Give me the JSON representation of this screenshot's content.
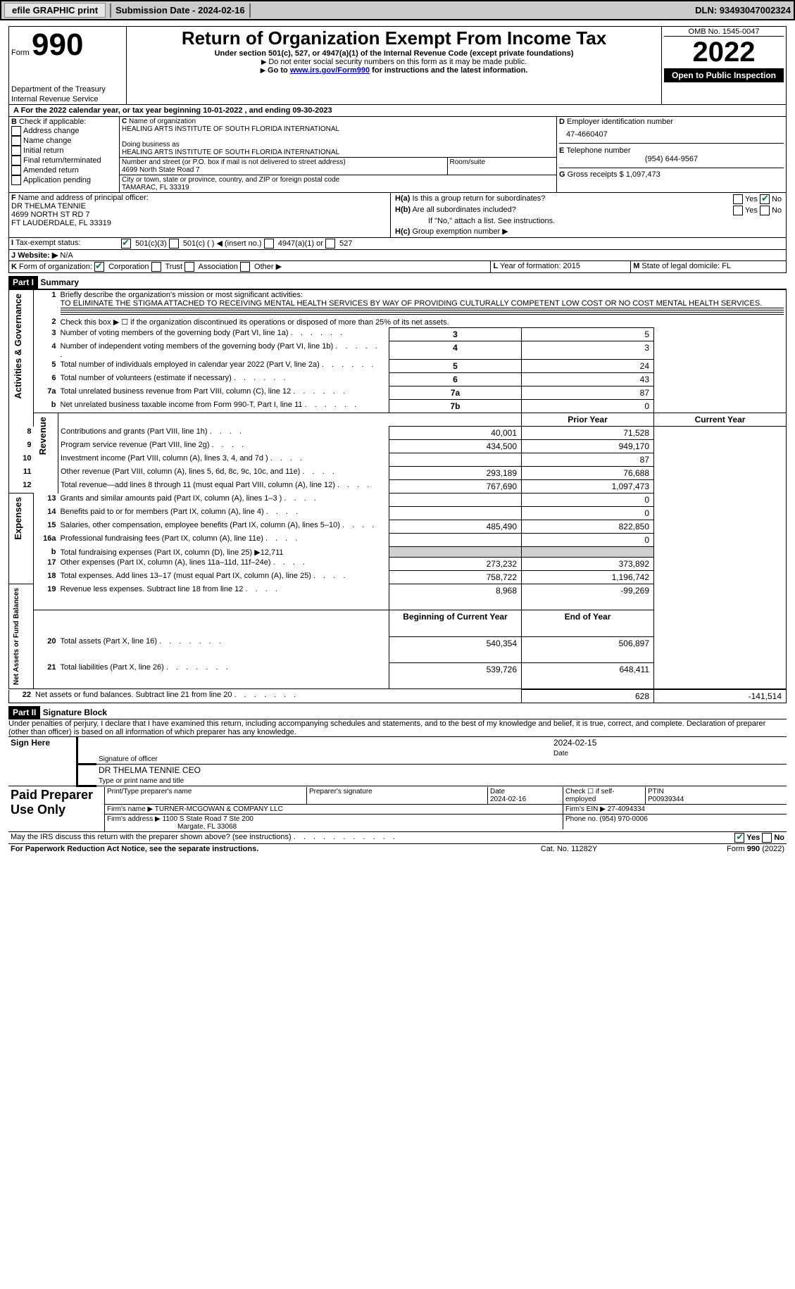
{
  "topbar": {
    "btn1": "efile GRAPHIC print",
    "subdate_label": "Submission Date - 2024-02-16",
    "dln": "DLN: 93493047002324"
  },
  "header": {
    "form_word": "Form",
    "form_num": "990",
    "dept": "Department of the Treasury",
    "irs": "Internal Revenue Service",
    "title": "Return of Organization Exempt From Income Tax",
    "sub1": "Under section 501(c), 527, or 4947(a)(1) of the Internal Revenue Code (except private foundations)",
    "sub2": "Do not enter social security numbers on this form as it may be made public.",
    "sub3_pre": "Go to ",
    "sub3_link": "www.irs.gov/Form990",
    "sub3_post": " for instructions and the latest information.",
    "omb": "OMB No. 1545-0047",
    "year": "2022",
    "open": "Open to Public Inspection"
  },
  "A": {
    "line": "For the 2022 calendar year, or tax year beginning 10-01-2022   , and ending 09-30-2023"
  },
  "B": {
    "label": "Check if applicable:",
    "opts": [
      "Address change",
      "Name change",
      "Initial return",
      "Final return/terminated",
      "Amended return",
      "Application pending"
    ]
  },
  "C": {
    "name_lbl": "Name of organization",
    "name": "HEALING ARTS INSTITUTE OF SOUTH FLORIDA INTERNATIONAL",
    "dba_lbl": "Doing business as",
    "dba": "HEALING ARTS INSTITUTE OF SOUTH FLORIDA INTERNATIONAL",
    "street_lbl": "Number and street (or P.O. box if mail is not delivered to street address)",
    "street": "4699 North State Road 7",
    "room_lbl": "Room/suite",
    "city_lbl": "City or town, state or province, country, and ZIP or foreign postal code",
    "city": "TAMARAC, FL  33319"
  },
  "D": {
    "lbl": "Employer identification number",
    "val": "47-4660407"
  },
  "E": {
    "lbl": "Telephone number",
    "val": "(954) 644-9567"
  },
  "G": {
    "lbl": "Gross receipts $",
    "val": "1,097,473"
  },
  "F": {
    "lbl": "Name and address of principal officer:",
    "l1": "DR THELMA TENNIE",
    "l2": "4699 NORTH ST RD 7",
    "l3": "FT LAUDERDALE, FL  33319"
  },
  "H": {
    "a": "Is this a group return for subordinates?",
    "b": "Are all subordinates included?",
    "b2": "If \"No,\" attach a list. See instructions.",
    "c": "Group exemption number ▶"
  },
  "I": {
    "lbl": "Tax-exempt status:",
    "o1": "501(c)(3)",
    "o2": "501(c) (  ) ◀ (insert no.)",
    "o3": "4947(a)(1) or",
    "o4": "527"
  },
  "J": {
    "lbl": "Website: ▶",
    "val": "N/A"
  },
  "K": {
    "lbl": "Form of organization:",
    "opts": [
      "Corporation",
      "Trust",
      "Association",
      "Other ▶"
    ]
  },
  "L": {
    "lbl": "Year of formation:",
    "val": "2015"
  },
  "M": {
    "lbl": "State of legal domicile:",
    "val": "FL"
  },
  "part1": {
    "title": "Part I",
    "head": "Summary",
    "q1": "Briefly describe the organization's mission or most significant activities:",
    "q1v": "TO ELIMINATE THE STIGMA ATTACHED TO RECEIVING MENTAL HEALTH SERVICES BY WAY OF PROVIDING CULTURALLY COMPETENT LOW COST OR NO COST MENTAL HEALTH SERVICES.",
    "q2": "Check this box ▶ ☐ if the organization discontinued its operations or disposed of more than 25% of its net assets.",
    "rows": [
      {
        "n": "3",
        "t": "Number of voting members of the governing body (Part VI, line 1a)",
        "box": "3",
        "v": "5"
      },
      {
        "n": "4",
        "t": "Number of independent voting members of the governing body (Part VI, line 1b)",
        "box": "4",
        "v": "3"
      },
      {
        "n": "5",
        "t": "Total number of individuals employed in calendar year 2022 (Part V, line 2a)",
        "box": "5",
        "v": "24"
      },
      {
        "n": "6",
        "t": "Total number of volunteers (estimate if necessary)",
        "box": "6",
        "v": "43"
      },
      {
        "n": "7a",
        "t": "Total unrelated business revenue from Part VIII, column (C), line 12",
        "box": "7a",
        "v": "87"
      },
      {
        "n": "b",
        "t": "Net unrelated business taxable income from Form 990-T, Part I, line 11",
        "box": "7b",
        "v": "0"
      }
    ],
    "py": "Prior Year",
    "cy": "Current Year",
    "rev": [
      {
        "n": "8",
        "t": "Contributions and grants (Part VIII, line 1h)",
        "p": "40,001",
        "c": "71,528"
      },
      {
        "n": "9",
        "t": "Program service revenue (Part VIII, line 2g)",
        "p": "434,500",
        "c": "949,170"
      },
      {
        "n": "10",
        "t": "Investment income (Part VIII, column (A), lines 3, 4, and 7d )",
        "p": "",
        "c": "87"
      },
      {
        "n": "11",
        "t": "Other revenue (Part VIII, column (A), lines 5, 6d, 8c, 9c, 10c, and 11e)",
        "p": "293,189",
        "c": "76,688"
      },
      {
        "n": "12",
        "t": "Total revenue—add lines 8 through 11 (must equal Part VIII, column (A), line 12)",
        "p": "767,690",
        "c": "1,097,473"
      }
    ],
    "exp": [
      {
        "n": "13",
        "t": "Grants and similar amounts paid (Part IX, column (A), lines 1–3 )",
        "p": "",
        "c": "0"
      },
      {
        "n": "14",
        "t": "Benefits paid to or for members (Part IX, column (A), line 4)",
        "p": "",
        "c": "0"
      },
      {
        "n": "15",
        "t": "Salaries, other compensation, employee benefits (Part IX, column (A), lines 5–10)",
        "p": "485,490",
        "c": "822,850"
      },
      {
        "n": "16a",
        "t": "Professional fundraising fees (Part IX, column (A), line 11e)",
        "p": "",
        "c": "0"
      },
      {
        "n": "b",
        "t": "Total fundraising expenses (Part IX, column (D), line 25) ▶12,711",
        "p": "SHADE",
        "c": "SHADE"
      },
      {
        "n": "17",
        "t": "Other expenses (Part IX, column (A), lines 11a–11d, 11f–24e)",
        "p": "273,232",
        "c": "373,892"
      },
      {
        "n": "18",
        "t": "Total expenses. Add lines 13–17 (must equal Part IX, column (A), line 25)",
        "p": "758,722",
        "c": "1,196,742"
      },
      {
        "n": "19",
        "t": "Revenue less expenses. Subtract line 18 from line 12",
        "p": "8,968",
        "c": "-99,269"
      }
    ],
    "boy": "Beginning of Current Year",
    "eoy": "End of Year",
    "net": [
      {
        "n": "20",
        "t": "Total assets (Part X, line 16)",
        "p": "540,354",
        "c": "506,897"
      },
      {
        "n": "21",
        "t": "Total liabilities (Part X, line 26)",
        "p": "539,726",
        "c": "648,411"
      },
      {
        "n": "22",
        "t": "Net assets or fund balances. Subtract line 21 from line 20",
        "p": "628",
        "c": "-141,514"
      }
    ],
    "sidelabels": {
      "act": "Activities & Governance",
      "rev": "Revenue",
      "exp": "Expenses",
      "net": "Net Assets or Fund Balances"
    }
  },
  "part2": {
    "title": "Part II",
    "head": "Signature Block",
    "decl": "Under penalties of perjury, I declare that I have examined this return, including accompanying schedules and statements, and to the best of my knowledge and belief, it is true, correct, and complete. Declaration of preparer (other than officer) is based on all information of which preparer has any knowledge.",
    "sign": "Sign Here",
    "sig_lbl": "Signature of officer",
    "date_lbl": "Date",
    "date": "2024-02-15",
    "name": "DR THELMA TENNIE  CEO",
    "name_lbl": "Type or print name and title",
    "paid": "Paid Preparer Use Only",
    "pname_lbl": "Print/Type preparer's name",
    "psig_lbl": "Preparer's signature",
    "pdate_lbl": "Date",
    "pdate": "2024-02-16",
    "pcheck": "Check ☐ if self-employed",
    "ptin_lbl": "PTIN",
    "ptin": "P00939344",
    "firm_lbl": "Firm's name  ▶",
    "firm": "TURNER-MCGOWAN & COMPANY LLC",
    "fein_lbl": "Firm's EIN ▶",
    "fein": "27-4094334",
    "faddr_lbl": "Firm's address ▶",
    "faddr1": "1100 S State Road 7 Ste 200",
    "faddr2": "Margate, FL  33068",
    "fphone_lbl": "Phone no.",
    "fphone": "(954) 970-0006",
    "may": "May the IRS discuss this return with the preparer shown above? (see instructions)",
    "yes": "Yes",
    "no": "No"
  },
  "footer": {
    "l": "For Paperwork Reduction Act Notice, see the separate instructions.",
    "c": "Cat. No. 11282Y",
    "r": "Form 990 (2022)"
  }
}
